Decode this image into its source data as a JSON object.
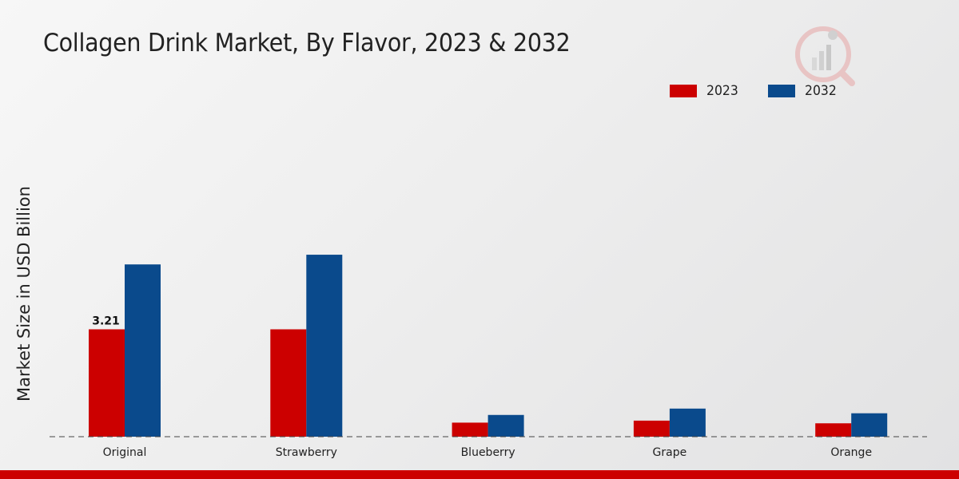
{
  "chart_data": {
    "type": "bar",
    "title": "Collagen Drink Market, By Flavor, 2023 & 2032",
    "ylabel": "Market Size in USD Billion",
    "xlabel": "",
    "categories": [
      "Original",
      "Strawberry",
      "Blueberry",
      "Grape",
      "Orange"
    ],
    "series": [
      {
        "name": "2023",
        "color": "#cc0000",
        "values": [
          3.21,
          3.21,
          0.42,
          0.48,
          0.4
        ]
      },
      {
        "name": "2032",
        "color": "#0a4a8c",
        "values": [
          5.15,
          5.44,
          0.65,
          0.84,
          0.7
        ]
      }
    ],
    "data_labels": [
      {
        "series": 0,
        "index": 0,
        "text": "3.21"
      }
    ],
    "ylim": [
      0,
      9
    ],
    "legend_position": "top-right",
    "grid": false
  }
}
